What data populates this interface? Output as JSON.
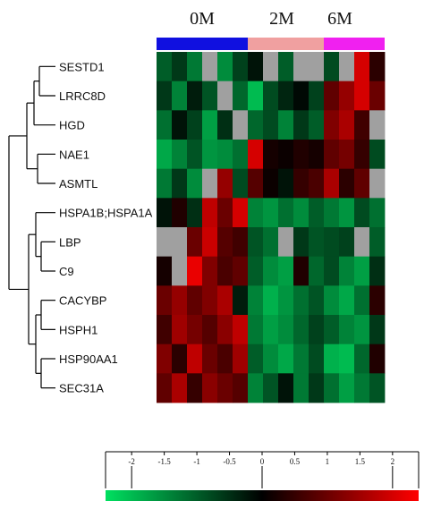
{
  "chart_data": {
    "type": "heatmap",
    "title": "",
    "groups": [
      {
        "label": "0M",
        "color": "#1010e0",
        "columns": 6
      },
      {
        "label": "2M",
        "color": "#f0a0a0",
        "columns": 5
      },
      {
        "label": "6M",
        "color": "#f020f0",
        "columns": 4
      }
    ],
    "rows": [
      "SESTD1",
      "LRRC8D",
      "HGD",
      "NAE1",
      "ASMTL",
      "HSPA1B;HSPA1A",
      "LBP",
      "C9",
      "CACYBP",
      "HSPH1",
      "HSP90AA1",
      "SEC31A"
    ],
    "values": [
      [
        -1.0,
        -0.6,
        -1.3,
        "NA",
        -1.5,
        -0.7,
        -0.2,
        "NA",
        -1.0,
        "NA",
        "NA",
        -0.8,
        "NA",
        2.0,
        0.4
      ],
      [
        -0.6,
        -1.4,
        -0.3,
        -0.9,
        "NA",
        -1.1,
        -2.0,
        -0.8,
        -0.4,
        -0.1,
        -0.7,
        0.9,
        1.4,
        2.0,
        1.0
      ],
      [
        -1.2,
        -0.2,
        -0.7,
        -1.7,
        -0.5,
        "NA",
        -1.1,
        -0.8,
        -1.4,
        -0.6,
        -1.0,
        1.2,
        1.6,
        0.6,
        "NA"
      ],
      [
        -1.8,
        -1.4,
        -0.9,
        -1.6,
        -1.5,
        -1.2,
        2.0,
        0.2,
        0.1,
        0.3,
        0.2,
        0.9,
        1.1,
        0.5,
        -0.8
      ],
      [
        -1.3,
        -0.6,
        -1.5,
        "NA",
        1.4,
        -0.8,
        0.8,
        0.1,
        -0.2,
        0.5,
        0.7,
        1.6,
        0.4,
        0.9,
        "NA"
      ],
      [
        -0.2,
        0.3,
        -0.5,
        1.8,
        1.0,
        2.0,
        -1.4,
        -1.6,
        -1.2,
        -1.5,
        -1.0,
        -1.3,
        -1.6,
        -0.8,
        -1.2
      ],
      [
        "NA",
        "NA",
        1.0,
        1.9,
        0.8,
        0.6,
        -0.9,
        -1.2,
        "NA",
        -0.6,
        -0.9,
        -0.8,
        -0.7,
        "NA",
        -1.0
      ],
      [
        0.2,
        "NA",
        2.2,
        1.2,
        0.7,
        0.9,
        -1.0,
        -1.5,
        -1.7,
        0.3,
        -1.1,
        -0.8,
        -1.4,
        -1.7,
        -0.5
      ],
      [
        1.0,
        1.4,
        0.9,
        1.2,
        1.6,
        -0.3,
        -1.4,
        -1.9,
        -1.6,
        -1.2,
        -0.9,
        -1.5,
        -1.8,
        -1.2,
        0.4
      ],
      [
        0.6,
        1.5,
        1.1,
        0.8,
        1.3,
        1.8,
        -1.3,
        -1.7,
        -1.5,
        -1.1,
        -0.7,
        -1.0,
        -1.4,
        -1.6,
        -0.6
      ],
      [
        1.2,
        0.4,
        1.8,
        1.0,
        0.7,
        1.5,
        -1.0,
        -1.5,
        -1.8,
        -1.3,
        -0.8,
        -1.9,
        -2.0,
        -1.1,
        0.3
      ],
      [
        0.9,
        1.6,
        0.5,
        1.3,
        1.0,
        0.8,
        -1.4,
        -0.9,
        -0.2,
        -1.3,
        -0.6,
        -1.2,
        -1.7,
        -1.3,
        -0.9
      ]
    ],
    "missing_color": "#a0a0a0",
    "colorbar": {
      "ticks": [
        "-2",
        "-1.5",
        "-1",
        "-0.5",
        "0",
        "0.5",
        "1",
        "1.5",
        "2"
      ],
      "tick_values": [
        -2,
        -1.5,
        -1,
        -0.5,
        0,
        0.5,
        1,
        1.5,
        2
      ],
      "range": [
        -2.4,
        2.4
      ],
      "low_color": "#00e060",
      "mid_color": "#000000",
      "high_color": "#ff0000"
    }
  }
}
